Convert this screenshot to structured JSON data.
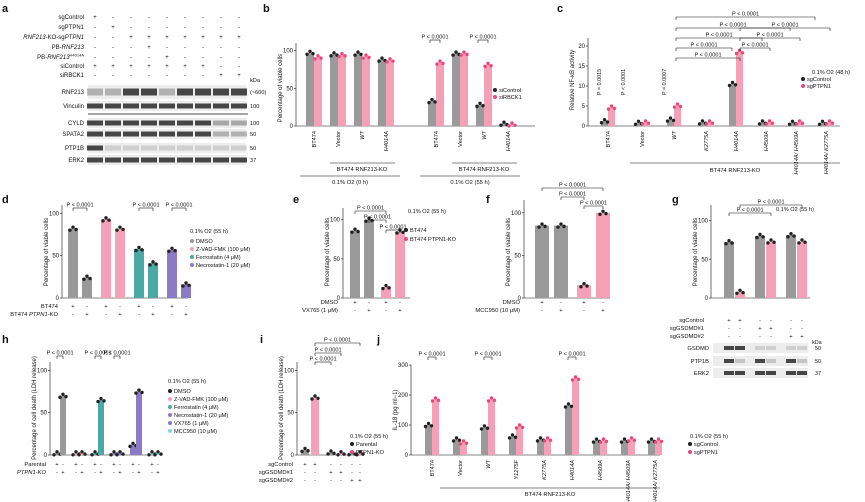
{
  "colors": {
    "gray": "#9a9a9a",
    "pink": "#f4a0b6",
    "pinkDot": "#e8487a",
    "teal": "#4aa9a4",
    "purple": "#8b7bc4",
    "cyan": "#7fd3e0",
    "dark": "#222222"
  },
  "panels": {
    "a": {
      "letter": "a",
      "kda": "kDa",
      "labels": [
        "sgControl",
        "sgPTPN1",
        "RNF213-KO-sgPTPN1",
        "PB-RNF213",
        "PB-RNF213",
        "siControl",
        "siRBCK1"
      ],
      "l3a": "RNF213",
      "l3b": "-KO-sg",
      "l3c": "PTPN1",
      "l4a": "PB-",
      "l4b": "RNF213",
      "l5a": "PB-",
      "l5b": "RNF213",
      "l5sup": "H4014A",
      "signs": [
        [
          "+",
          "-",
          "-",
          "-",
          "-",
          "-",
          "-",
          "-",
          "-"
        ],
        [
          "-",
          "+",
          "-",
          "-",
          "-",
          "-",
          "-",
          "-",
          "-"
        ],
        [
          "-",
          "-",
          "+",
          "+",
          "+",
          "+",
          "+",
          "+",
          "+"
        ],
        [
          "-",
          "-",
          "-",
          "+",
          "-",
          "-",
          "-",
          "-",
          "-"
        ],
        [
          "-",
          "-",
          "-",
          "-",
          "+",
          "-",
          "-",
          "-",
          "-"
        ],
        [
          "+",
          "+",
          "+",
          "+",
          "+",
          "+",
          "+",
          "-",
          "-"
        ],
        [
          "-",
          "-",
          "-",
          "-",
          "-",
          "-",
          "-",
          "+",
          "+"
        ]
      ],
      "blots": [
        {
          "name": "RNF213",
          "kda": "kDa\n(~600)"
        },
        {
          "name": "Vinculin",
          "kda": "100"
        },
        {
          "name": "CYLD",
          "kda": "100"
        },
        {
          "name": "SPATA2",
          "kda": "50"
        },
        {
          "name": "PTP1B",
          "kda": "50"
        },
        {
          "name": "ERK2",
          "kda": "37"
        }
      ],
      "kda_texts": [
        "(~600)",
        "100",
        "100",
        "50",
        "50",
        "37"
      ]
    },
    "b": {
      "letter": "b",
      "ylabel": "Percentage of viable cells",
      "yticks": [
        "0",
        "50",
        "100"
      ],
      "cats": [
        "BT474",
        "Vector",
        "WT",
        "H4014A",
        "BT474",
        "Vector",
        "WT",
        "H4014A"
      ],
      "values_ctrl": [
        97,
        95,
        96,
        88,
        33,
        96,
        28,
        3
      ],
      "values_si": [
        91,
        94,
        92,
        87,
        84,
        96,
        81,
        2
      ],
      "group1": "BT474 RNF213-KO",
      "group2": "BT474 RNF213-KO",
      "cond1": "0.1% O2 (0 h)",
      "cond2": "0.1% O2 (55 h)",
      "pvals": [
        "P < 0.0001",
        "P < 0.0001"
      ],
      "legend": [
        "siControl",
        "siRBCK1"
      ]
    },
    "c": {
      "letter": "c",
      "ylabel": "Relative NF-κB activity",
      "yticks": [
        "0",
        "5",
        "10",
        "15",
        "20"
      ],
      "cats": [
        "BT474",
        "Vector",
        "WT",
        "K2775A",
        "H4014A",
        "H4509A",
        "H4014A/ H4509A",
        "H4014A/ K2775A"
      ],
      "values_ctrl": [
        1.2,
        0.8,
        1.6,
        0.9,
        10.5,
        0.9,
        0.8,
        0.8
      ],
      "values_ptpn1": [
        4.6,
        0.9,
        5.1,
        0.9,
        18.5,
        0.9,
        0.9,
        0.9
      ],
      "group": "BT474 RNF213-KO",
      "condition": "0.1% O2 (48 h)",
      "legend": [
        "sgControl",
        "sgPTPN1"
      ],
      "pvals": [
        "P = 0.0015",
        "P < 0.0001",
        "P = 0.0007",
        "P < 0.0001",
        "P < 0.0001",
        "P < 0.0001",
        "P < 0.0001",
        "P < 0.0001",
        "P < 0.0001",
        "P < 0.0001",
        "P < 0.0001"
      ]
    },
    "d": {
      "letter": "d",
      "ylabel": "Percentage of viable cells",
      "yticks": [
        "0",
        "50",
        "100"
      ],
      "values": [
        82,
        24,
        93,
        82,
        58,
        41,
        57,
        16
      ],
      "row1": "BT474",
      "row2": "BT474 PTPN1-KO",
      "signs1": [
        "+",
        "-",
        "+",
        "-",
        "+",
        "-",
        "+",
        "-"
      ],
      "signs2": [
        "-",
        "+",
        "-",
        "+",
        "-",
        "+",
        "-",
        "+"
      ],
      "pvals": [
        "P < 0.0001",
        "P < 0.0001",
        "P < 0.0001"
      ],
      "condition": "0.1% O2 (55 h)",
      "legend": [
        "DMSO",
        "Z-VAD-FMK (100 μM)",
        "Ferrostatin (4 μM)",
        "Necrostatin-1 (20 μM)"
      ]
    },
    "e": {
      "letter": "e",
      "ylabel": "Percentage of viable cells",
      "yticks": [
        "0",
        "50",
        "100"
      ],
      "values": [
        86,
        100,
        14,
        85
      ],
      "row1": "DMSO",
      "row2": "VX765 (1 μM)",
      "signs1": [
        "+",
        "-",
        "+",
        "-"
      ],
      "signs2": [
        "-",
        "+",
        "-",
        "+"
      ],
      "pvals": [
        "P < 0.0001",
        "P < 0.0001",
        "P < 0.0001"
      ],
      "condition": "0.1% O2 (55 h)",
      "legend": [
        "BT474",
        "BT474 PTPN1-KO"
      ]
    },
    "f": {
      "letter": "f",
      "ylabel": "Percentage of viable cells",
      "yticks": [
        "0",
        "50",
        "100"
      ],
      "values": [
        85,
        85,
        15,
        100
      ],
      "row1": "DMSO",
      "row2": "MCC950 (10 μM)",
      "signs1": [
        "+",
        "-",
        "+",
        "-"
      ],
      "signs2": [
        "-",
        "+",
        "-",
        "+"
      ],
      "pvals": [
        "P < 0.0001",
        "P < 0.0001",
        "P < 0.0001"
      ]
    },
    "g": {
      "letter": "g",
      "ylabel": "Percentage of viable cells",
      "yticks": [
        "0",
        "50",
        "100"
      ],
      "values": [
        72,
        8,
        80,
        73,
        81,
        73
      ],
      "pvals": [
        "P < 0.0001",
        "P < 0.0001"
      ],
      "condition": "0.1% O2 (55 h)",
      "rows": [
        "sgControl",
        "sgGSDMD#1",
        "sgGSDMD#2"
      ],
      "signs": [
        [
          "+",
          "+",
          "-",
          "-",
          "-",
          "-"
        ],
        [
          "-",
          "-",
          "+",
          "+",
          "-",
          "-"
        ],
        [
          "-",
          "-",
          "-",
          "-",
          "+",
          "+"
        ]
      ],
      "blots": [
        "GSDMD",
        "PTP1B",
        "ERK2"
      ],
      "kda_head": "kDa",
      "kda": [
        "50",
        "50",
        "37"
      ]
    },
    "h": {
      "letter": "h",
      "ylabel": "Percentage of cell death (LDH release)",
      "yticks": [
        "0",
        "50",
        "100"
      ],
      "values": [
        2,
        70,
        2,
        2,
        2,
        65,
        2,
        2,
        12,
        75,
        2,
        2
      ],
      "pvals": [
        "P < 0.0001",
        "P < 0.0001",
        "P < 0.0001"
      ],
      "condition": "0.1% O2 (55 h)",
      "legend": [
        "DMSO",
        "Z-VAD-FMK (100 μM)",
        "Ferrostatin (4 μM)",
        "Necrostatin-1 (20 μM)",
        "VX765 (1 μM)",
        "MCC950 (10 μM)"
      ],
      "row1": "Parental",
      "row2": "PTPN1-KO"
    },
    "i": {
      "letter": "i",
      "ylabel": "Percentage of cell death (LDH release)",
      "yticks": [
        "0",
        "50",
        "100"
      ],
      "values": [
        6,
        68,
        3,
        2,
        2,
        2
      ],
      "pvals": [
        "P < 0.0001",
        "P < 0.0001",
        "P < 0.0001"
      ],
      "condition": "0.1% O2 (55 h)",
      "legend": [
        "Parental",
        "PTPN1-KO"
      ],
      "rows": [
        "sgControl",
        "sgGSDMD#1",
        "sgGSDMD#2"
      ],
      "signs": [
        [
          "+",
          "+",
          "-",
          "-",
          "-",
          "-"
        ],
        [
          "-",
          "-",
          "+",
          "+",
          "-",
          "-"
        ],
        [
          "-",
          "-",
          "-",
          "-",
          "+",
          "+"
        ]
      ]
    },
    "j": {
      "letter": "j",
      "ylabel": "IL-18 (pg ml−1)",
      "yticks": [
        "0",
        "100",
        "200",
        "300"
      ],
      "cats": [
        "BT474",
        "Vector",
        "WT",
        "Y1275F",
        "K2775A",
        "H4014A",
        "H4509A",
        "H4014A/ H4509A",
        "H4014A/ K2775A"
      ],
      "values_ctrl": [
        100,
        52,
        92,
        62,
        52,
        165,
        48,
        48,
        48
      ],
      "values_ptpn1": [
        185,
        42,
        185,
        95,
        52,
        255,
        48,
        52,
        48
      ],
      "pvals": [
        "P < 0.0001",
        "P < 0.0001",
        "P < 0.0001"
      ],
      "condition": "0.1% O2 (55 h)",
      "legend": [
        "sgControl",
        "sgPTPN1"
      ],
      "group": "BT474 RNF213-KO"
    }
  }
}
